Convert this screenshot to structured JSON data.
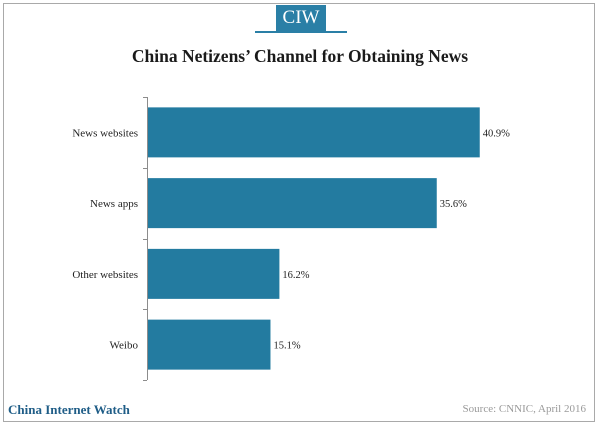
{
  "logo_text": "CIW",
  "footer": {
    "brand": "China Internet Watch",
    "source": "Source: CNNIC, April 2016"
  },
  "colors": {
    "bar": "#237ba0",
    "accent": "#2a7fa6",
    "axis": "#8c8c8c"
  },
  "chart_data": {
    "type": "bar",
    "orientation": "horizontal",
    "title": "China Netizens’ Channel for Obtaining  News",
    "categories": [
      "News websites",
      "News apps",
      "Other websites",
      "Weibo"
    ],
    "values": [
      40.9,
      35.6,
      16.2,
      15.1
    ],
    "value_labels": [
      "40.9%",
      "35.6%",
      "16.2%",
      "15.1%"
    ],
    "unit": "%",
    "xlim": [
      0,
      45
    ],
    "grid": false,
    "legend": "none",
    "xlabel": "",
    "ylabel": ""
  }
}
